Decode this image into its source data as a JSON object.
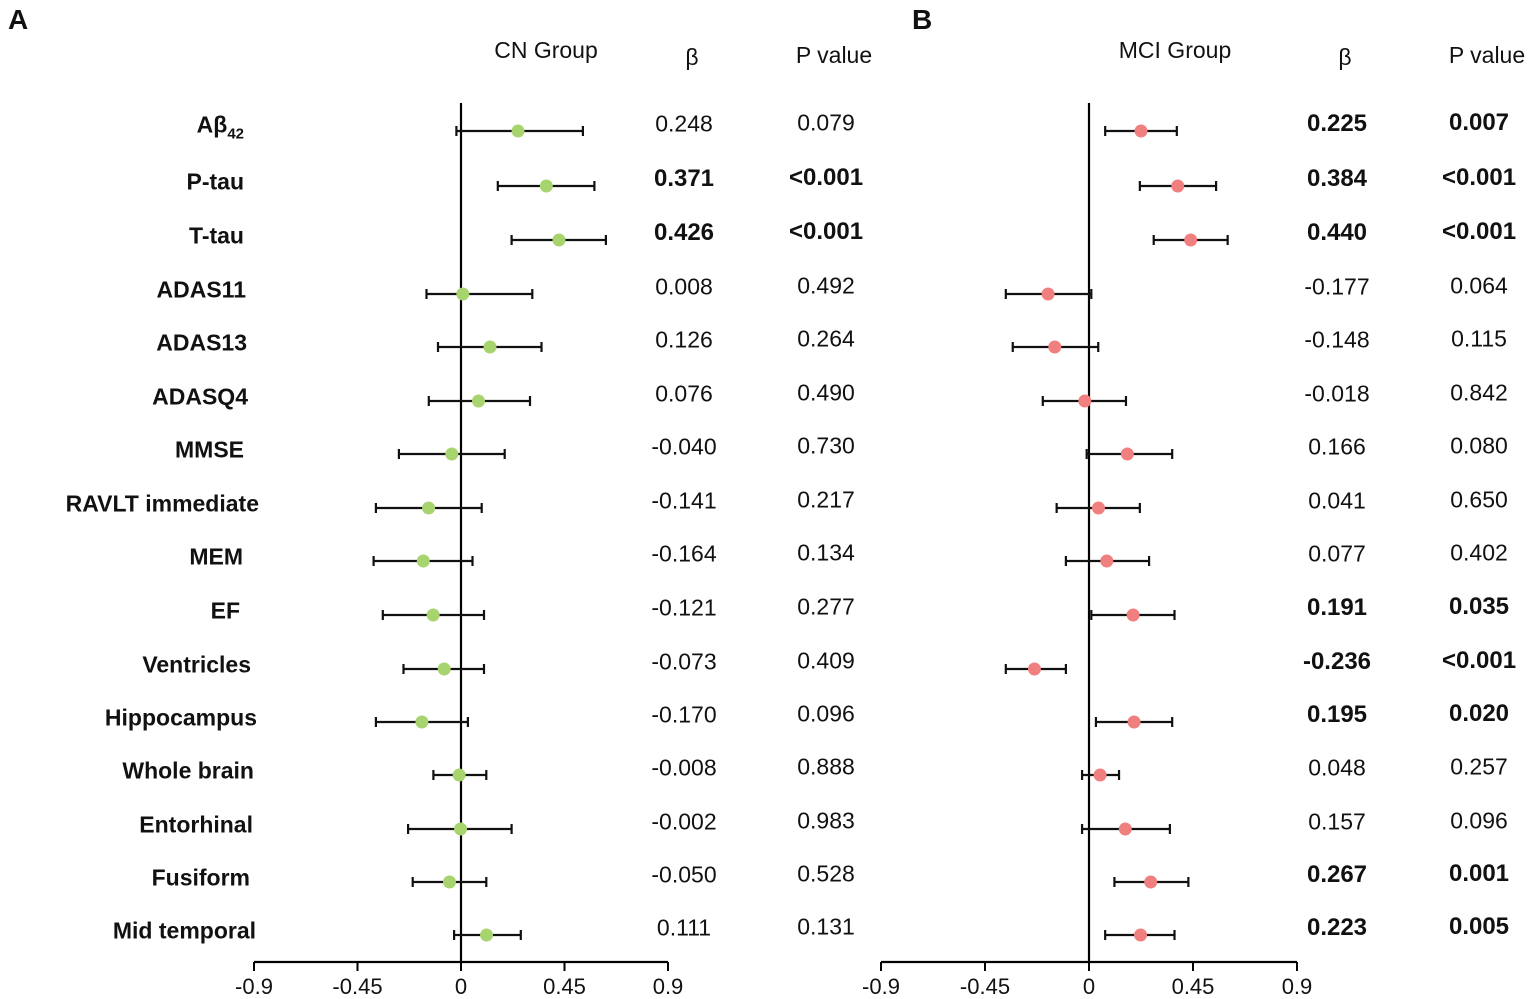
{
  "panels": [
    {
      "letter": "A",
      "group_title": "CN Group",
      "beta_header": "β",
      "p_header": "P value",
      "marker_color": "#a8d46f"
    },
    {
      "letter": "B",
      "group_title": "MCI Group",
      "beta_header": "β",
      "p_header": "P value",
      "marker_color": "#f08080"
    }
  ],
  "labels": [
    {
      "main": "Aβ",
      "sub": "42"
    },
    {
      "main": "P-tau"
    },
    {
      "main": "T-tau"
    },
    {
      "main": "ADAS11"
    },
    {
      "main": "ADAS13"
    },
    {
      "main": "ADASQ4"
    },
    {
      "main": "MMSE"
    },
    {
      "main": "RAVLT immediate"
    },
    {
      "main": "MEM"
    },
    {
      "main": "EF"
    },
    {
      "main": "Ventricles"
    },
    {
      "main": "Hippocampus"
    },
    {
      "main": "Whole brain"
    },
    {
      "main": "Entorhinal"
    },
    {
      "main": "Fusiform"
    },
    {
      "main": "Mid temporal"
    }
  ],
  "chart_data": [
    {
      "type": "forest",
      "title": "CN Group",
      "xlim": [
        -0.9,
        0.9
      ],
      "xticks": [
        "-0.9",
        "-0.45",
        "0",
        "0.45",
        "0.9"
      ],
      "xtick_values": [
        -0.9,
        -0.45,
        0,
        0.45,
        0.9
      ],
      "rows": [
        {
          "beta": 0.248,
          "ci": [
            -0.02,
            0.53
          ],
          "beta_text": "0.248",
          "p_text": "0.079",
          "significant": false
        },
        {
          "beta": 0.371,
          "ci": [
            0.16,
            0.58
          ],
          "beta_text": "0.371",
          "p_text": "<0.001",
          "significant": true
        },
        {
          "beta": 0.426,
          "ci": [
            0.22,
            0.63
          ],
          "beta_text": "0.426",
          "p_text": "<0.001",
          "significant": true
        },
        {
          "beta": 0.008,
          "ci": [
            -0.15,
            0.31
          ],
          "beta_text": "0.008",
          "p_text": "0.492",
          "significant": false
        },
        {
          "beta": 0.126,
          "ci": [
            -0.1,
            0.35
          ],
          "beta_text": "0.126",
          "p_text": "0.264",
          "significant": false
        },
        {
          "beta": 0.076,
          "ci": [
            -0.14,
            0.3
          ],
          "beta_text": "0.076",
          "p_text": "0.490",
          "significant": false
        },
        {
          "beta": -0.04,
          "ci": [
            -0.27,
            0.19
          ],
          "beta_text": "-0.040",
          "p_text": "0.730",
          "significant": false
        },
        {
          "beta": -0.141,
          "ci": [
            -0.37,
            0.09
          ],
          "beta_text": "-0.141",
          "p_text": "0.217",
          "significant": false
        },
        {
          "beta": -0.164,
          "ci": [
            -0.38,
            0.05
          ],
          "beta_text": "-0.164",
          "p_text": "0.134",
          "significant": false
        },
        {
          "beta": -0.121,
          "ci": [
            -0.34,
            0.1
          ],
          "beta_text": "-0.121",
          "p_text": "0.277",
          "significant": false
        },
        {
          "beta": -0.073,
          "ci": [
            -0.25,
            0.1
          ],
          "beta_text": "-0.073",
          "p_text": "0.409",
          "significant": false
        },
        {
          "beta": -0.17,
          "ci": [
            -0.37,
            0.03
          ],
          "beta_text": "-0.170",
          "p_text": "0.096",
          "significant": false
        },
        {
          "beta": -0.008,
          "ci": [
            -0.12,
            0.11
          ],
          "beta_text": "-0.008",
          "p_text": "0.888",
          "significant": false
        },
        {
          "beta": -0.002,
          "ci": [
            -0.23,
            0.22
          ],
          "beta_text": "-0.002",
          "p_text": "0.983",
          "significant": false
        },
        {
          "beta": -0.05,
          "ci": [
            -0.21,
            0.11
          ],
          "beta_text": "-0.050",
          "p_text": "0.528",
          "significant": false
        },
        {
          "beta": 0.111,
          "ci": [
            -0.03,
            0.26
          ],
          "beta_text": "0.111",
          "p_text": "0.131",
          "significant": false
        }
      ]
    },
    {
      "type": "forest",
      "title": "MCI Group",
      "xlim": [
        -0.9,
        0.9
      ],
      "xticks": [
        "-0.9",
        "-0.45",
        "0",
        "0.45",
        "0.9"
      ],
      "xtick_values": [
        -0.9,
        -0.45,
        0,
        0.45,
        0.9
      ],
      "rows": [
        {
          "beta": 0.225,
          "ci": [
            0.07,
            0.38
          ],
          "beta_text": "0.225",
          "p_text": "0.007",
          "significant": true
        },
        {
          "beta": 0.384,
          "ci": [
            0.22,
            0.55
          ],
          "beta_text": "0.384",
          "p_text": "<0.001",
          "significant": true
        },
        {
          "beta": 0.44,
          "ci": [
            0.28,
            0.6
          ],
          "beta_text": "0.440",
          "p_text": "<0.001",
          "significant": true
        },
        {
          "beta": -0.177,
          "ci": [
            -0.36,
            0.01
          ],
          "beta_text": "-0.177",
          "p_text": "0.064",
          "significant": false
        },
        {
          "beta": -0.148,
          "ci": [
            -0.33,
            0.04
          ],
          "beta_text": "-0.148",
          "p_text": "0.115",
          "significant": false
        },
        {
          "beta": -0.018,
          "ci": [
            -0.2,
            0.16
          ],
          "beta_text": "-0.018",
          "p_text": "0.842",
          "significant": false
        },
        {
          "beta": 0.166,
          "ci": [
            -0.01,
            0.36
          ],
          "beta_text": "0.166",
          "p_text": "0.080",
          "significant": false
        },
        {
          "beta": 0.041,
          "ci": [
            -0.14,
            0.22
          ],
          "beta_text": "0.041",
          "p_text": "0.650",
          "significant": false
        },
        {
          "beta": 0.077,
          "ci": [
            -0.1,
            0.26
          ],
          "beta_text": "0.077",
          "p_text": "0.402",
          "significant": false
        },
        {
          "beta": 0.191,
          "ci": [
            0.01,
            0.37
          ],
          "beta_text": "0.191",
          "p_text": "0.035",
          "significant": true
        },
        {
          "beta": -0.236,
          "ci": [
            -0.36,
            -0.1
          ],
          "beta_text": "-0.236",
          "p_text": "<0.001",
          "significant": true
        },
        {
          "beta": 0.195,
          "ci": [
            0.03,
            0.36
          ],
          "beta_text": "0.195",
          "p_text": "0.020",
          "significant": true
        },
        {
          "beta": 0.048,
          "ci": [
            -0.03,
            0.13
          ],
          "beta_text": "0.048",
          "p_text": "0.257",
          "significant": false
        },
        {
          "beta": 0.157,
          "ci": [
            -0.03,
            0.35
          ],
          "beta_text": "0.157",
          "p_text": "0.096",
          "significant": false
        },
        {
          "beta": 0.267,
          "ci": [
            0.11,
            0.43
          ],
          "beta_text": "0.267",
          "p_text": "0.001",
          "significant": true
        },
        {
          "beta": 0.223,
          "ci": [
            0.07,
            0.37
          ],
          "beta_text": "0.223",
          "p_text": "0.005",
          "significant": true
        }
      ]
    }
  ]
}
